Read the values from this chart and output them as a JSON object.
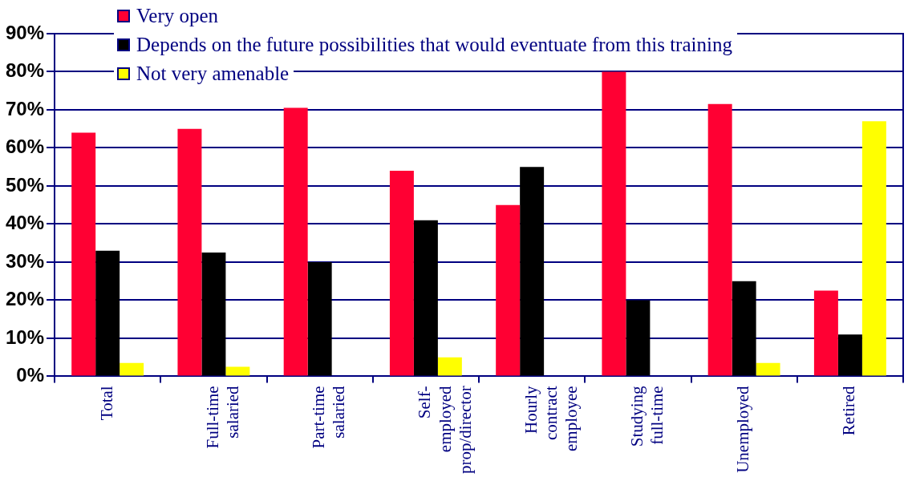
{
  "chart_data": {
    "type": "bar",
    "categories": [
      "Total",
      "Full-time salaried",
      "Part-time salaried",
      "Self-employed prop/director",
      "Hourly contract employee",
      "Studying full-time",
      "Unemployed",
      "Retired"
    ],
    "series": [
      {
        "name": "Very open",
        "color": "#ff0033",
        "values": [
          64,
          65,
          70.5,
          54,
          45,
          80,
          71.5,
          22.5
        ]
      },
      {
        "name": "Depends on the future possibilities that would eventuate from this training",
        "color": "#000000",
        "values": [
          33,
          32.5,
          30,
          41,
          55,
          20,
          25,
          11
        ]
      },
      {
        "name": "Not very amenable",
        "color": "#ffff00",
        "values": [
          3.5,
          2.5,
          0,
          5,
          0,
          0,
          3.5,
          67
        ]
      }
    ],
    "ylim": [
      0,
      90
    ],
    "yticks": [
      {
        "value": 0,
        "label": "0%"
      },
      {
        "value": 10,
        "label": "10%"
      },
      {
        "value": 20,
        "label": "20%"
      },
      {
        "value": 30,
        "label": "30%"
      },
      {
        "value": 40,
        "label": "40%"
      },
      {
        "value": 50,
        "label": "50%"
      },
      {
        "value": 60,
        "label": "60%"
      },
      {
        "value": 70,
        "label": "70%"
      },
      {
        "value": 80,
        "label": "80%"
      },
      {
        "value": 90,
        "label": "90%"
      }
    ],
    "grid": "y",
    "legend": "top left"
  }
}
